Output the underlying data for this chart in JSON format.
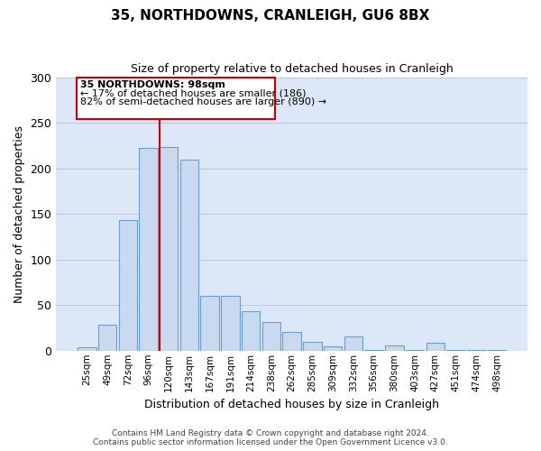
{
  "title": "35, NORTHDOWNS, CRANLEIGH, GU6 8BX",
  "subtitle": "Size of property relative to detached houses in Cranleigh",
  "xlabel": "Distribution of detached houses by size in Cranleigh",
  "ylabel": "Number of detached properties",
  "bar_labels": [
    "25sqm",
    "49sqm",
    "72sqm",
    "96sqm",
    "120sqm",
    "143sqm",
    "167sqm",
    "191sqm",
    "214sqm",
    "238sqm",
    "262sqm",
    "285sqm",
    "309sqm",
    "332sqm",
    "356sqm",
    "380sqm",
    "403sqm",
    "427sqm",
    "451sqm",
    "474sqm",
    "498sqm"
  ],
  "bar_values": [
    4,
    28,
    143,
    222,
    223,
    210,
    60,
    60,
    43,
    31,
    21,
    10,
    5,
    16,
    1,
    6,
    1,
    9,
    1,
    1,
    1
  ],
  "bar_color": "#c9d9f0",
  "bar_edge_color": "#6b9fd4",
  "vline_x_idx": 4,
  "vline_color": "#cc0000",
  "annotation_title": "35 NORTHDOWNS: 98sqm",
  "annotation_line1": "← 17% of detached houses are smaller (186)",
  "annotation_line2": "82% of semi-detached houses are larger (890) →",
  "annotation_box_color": "#cc0000",
  "ylim": [
    0,
    300
  ],
  "yticks": [
    0,
    50,
    100,
    150,
    200,
    250,
    300
  ],
  "background_color": "#dce8f8",
  "footer_line1": "Contains HM Land Registry data © Crown copyright and database right 2024.",
  "footer_line2": "Contains public sector information licensed under the Open Government Licence v3.0."
}
